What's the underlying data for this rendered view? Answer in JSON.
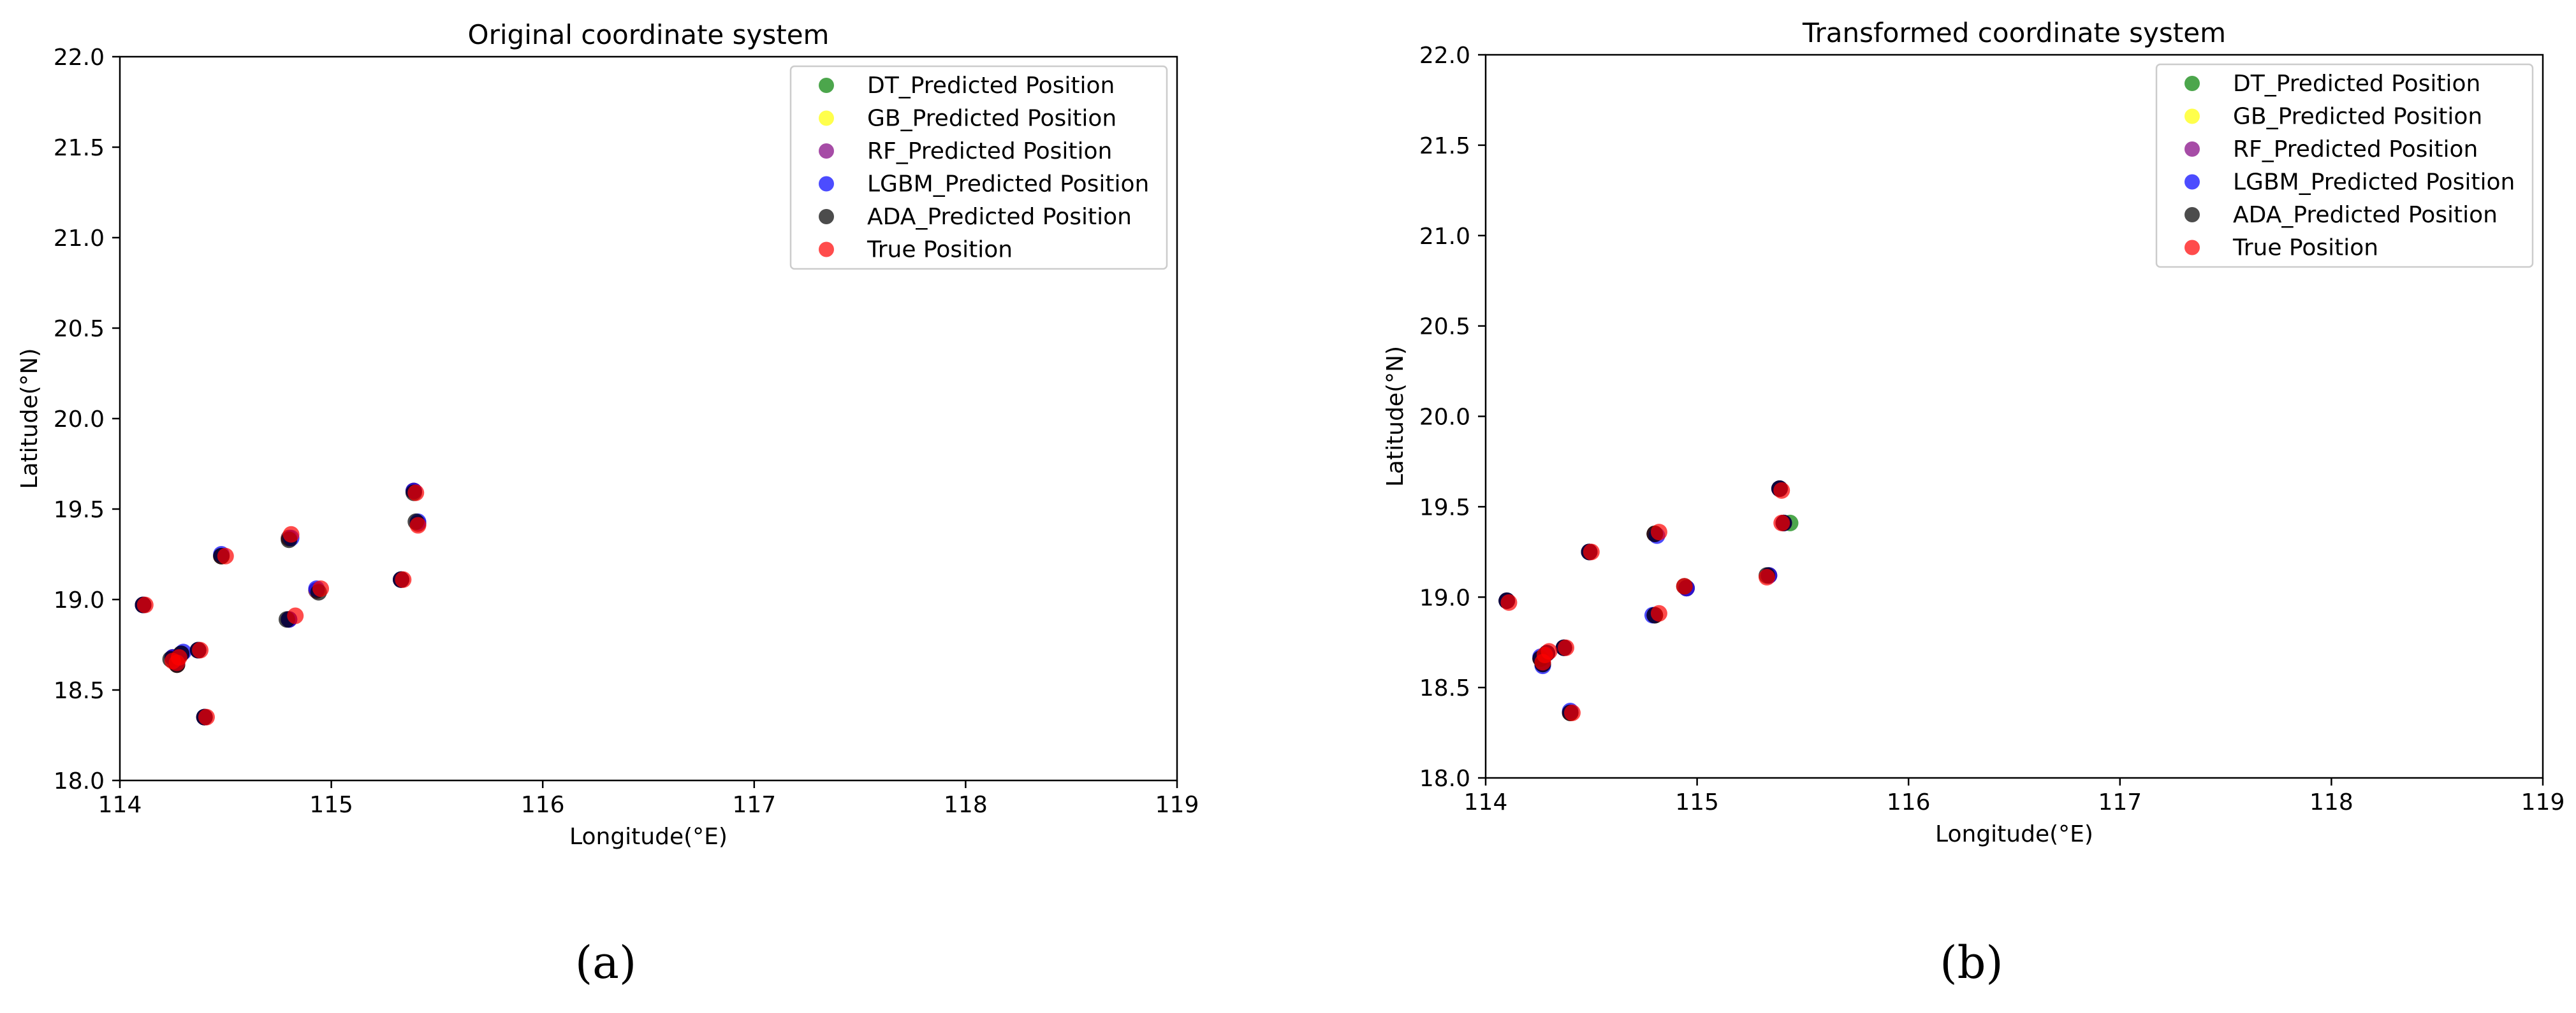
{
  "chart_data": [
    {
      "type": "scatter",
      "title": "Original coordinate system",
      "xlabel": "Longitude(°E)",
      "ylabel": "Latitude(°N)",
      "xlim": [
        114,
        119
      ],
      "ylim": [
        18.0,
        22.0
      ],
      "xticks": [
        "114",
        "115",
        "116",
        "117",
        "118",
        "119"
      ],
      "yticks": [
        "18.0",
        "18.5",
        "19.0",
        "19.5",
        "20.0",
        "20.5",
        "21.0",
        "21.5",
        "22.0"
      ],
      "grid": false,
      "legend_position": "top-right",
      "caption": "(a)",
      "series": [
        {
          "name": "DT_Predicted Position",
          "color": "#008000",
          "points": [
            [
              114.11,
              18.97
            ],
            [
              114.25,
              18.68
            ],
            [
              114.29,
              18.7
            ],
            [
              114.37,
              18.72
            ],
            [
              114.4,
              18.35
            ],
            [
              114.48,
              19.24
            ],
            [
              114.8,
              19.34
            ],
            [
              114.8,
              18.89
            ],
            [
              114.93,
              19.05
            ],
            [
              115.33,
              19.11
            ],
            [
              115.39,
              19.6
            ],
            [
              115.41,
              19.42
            ],
            [
              114.27,
              18.64
            ]
          ]
        },
        {
          "name": "GB_Predicted Position",
          "color": "#ffff00",
          "points": [
            [
              114.11,
              18.97
            ],
            [
              114.25,
              18.68
            ],
            [
              114.29,
              18.7
            ],
            [
              114.37,
              18.72
            ],
            [
              114.4,
              18.35
            ],
            [
              114.48,
              19.24
            ],
            [
              114.8,
              19.34
            ],
            [
              114.8,
              18.89
            ],
            [
              114.93,
              19.05
            ],
            [
              115.33,
              19.11
            ],
            [
              115.39,
              19.6
            ],
            [
              115.41,
              19.42
            ],
            [
              114.27,
              18.64
            ]
          ]
        },
        {
          "name": "RF_Predicted Position",
          "color": "#800080",
          "points": [
            [
              114.11,
              18.97
            ],
            [
              114.25,
              18.68
            ],
            [
              114.29,
              18.7
            ],
            [
              114.37,
              18.72
            ],
            [
              114.4,
              18.35
            ],
            [
              114.48,
              19.24
            ],
            [
              114.8,
              19.34
            ],
            [
              114.8,
              18.89
            ],
            [
              114.93,
              19.05
            ],
            [
              115.33,
              19.11
            ],
            [
              115.39,
              19.6
            ],
            [
              115.41,
              19.42
            ],
            [
              114.27,
              18.64
            ]
          ]
        },
        {
          "name": "LGBM_Predicted Position",
          "color": "#0000ff",
          "points": [
            [
              114.11,
              18.97
            ],
            [
              114.25,
              18.68
            ],
            [
              114.3,
              18.71
            ],
            [
              114.37,
              18.72
            ],
            [
              114.4,
              18.35
            ],
            [
              114.48,
              19.25
            ],
            [
              114.81,
              19.34
            ],
            [
              114.8,
              18.89
            ],
            [
              114.93,
              19.06
            ],
            [
              115.33,
              19.11
            ],
            [
              115.39,
              19.6
            ],
            [
              115.41,
              19.43
            ],
            [
              114.27,
              18.65
            ]
          ]
        },
        {
          "name": "ADA_Predicted Position",
          "color": "#000000",
          "points": [
            [
              114.11,
              18.97
            ],
            [
              114.24,
              18.67
            ],
            [
              114.29,
              18.7
            ],
            [
              114.37,
              18.72
            ],
            [
              114.4,
              18.35
            ],
            [
              114.48,
              19.24
            ],
            [
              114.8,
              19.33
            ],
            [
              114.79,
              18.89
            ],
            [
              114.94,
              19.04
            ],
            [
              115.33,
              19.11
            ],
            [
              115.39,
              19.59
            ],
            [
              115.4,
              19.43
            ],
            [
              114.27,
              18.64
            ]
          ]
        },
        {
          "name": "True Position",
          "color": "#ff0000",
          "points": [
            [
              114.12,
              18.97
            ],
            [
              114.27,
              18.65
            ],
            [
              114.28,
              18.68
            ],
            [
              114.38,
              18.72
            ],
            [
              114.41,
              18.35
            ],
            [
              114.5,
              19.24
            ],
            [
              114.81,
              19.36
            ],
            [
              114.83,
              18.91
            ],
            [
              114.95,
              19.06
            ],
            [
              115.34,
              19.11
            ],
            [
              115.4,
              19.59
            ],
            [
              115.41,
              19.41
            ],
            [
              114.25,
              18.66
            ]
          ]
        }
      ]
    },
    {
      "type": "scatter",
      "title": "Transformed coordinate system",
      "xlabel": "Longitude(°E)",
      "ylabel": "Latitude(°N)",
      "xlim": [
        114,
        119
      ],
      "ylim": [
        18.0,
        22.0
      ],
      "xticks": [
        "114",
        "115",
        "116",
        "117",
        "118",
        "119"
      ],
      "yticks": [
        "18.0",
        "18.5",
        "19.0",
        "19.5",
        "20.0",
        "20.5",
        "21.0",
        "21.5",
        "22.0"
      ],
      "grid": false,
      "legend_position": "top-right",
      "caption": "(b)",
      "series": [
        {
          "name": "DT_Predicted Position",
          "color": "#008000",
          "points": [
            [
              114.1,
              18.98
            ],
            [
              114.26,
              18.66
            ],
            [
              114.29,
              18.69
            ],
            [
              114.37,
              18.72
            ],
            [
              114.4,
              18.36
            ],
            [
              114.49,
              19.25
            ],
            [
              114.8,
              19.35
            ],
            [
              114.8,
              18.9
            ],
            [
              114.95,
              19.05
            ],
            [
              115.34,
              19.12
            ],
            [
              115.39,
              19.6
            ],
            [
              115.44,
              19.41
            ],
            [
              114.27,
              18.63
            ]
          ]
        },
        {
          "name": "GB_Predicted Position",
          "color": "#ffff00",
          "points": [
            [
              114.1,
              18.98
            ],
            [
              114.26,
              18.66
            ],
            [
              114.29,
              18.69
            ],
            [
              114.37,
              18.72
            ],
            [
              114.4,
              18.36
            ],
            [
              114.49,
              19.25
            ],
            [
              114.8,
              19.35
            ],
            [
              114.8,
              18.9
            ],
            [
              114.95,
              19.05
            ],
            [
              115.34,
              19.12
            ],
            [
              115.39,
              19.6
            ],
            [
              115.41,
              19.41
            ],
            [
              114.27,
              18.63
            ]
          ]
        },
        {
          "name": "RF_Predicted Position",
          "color": "#800080",
          "points": [
            [
              114.1,
              18.98
            ],
            [
              114.26,
              18.66
            ],
            [
              114.29,
              18.69
            ],
            [
              114.37,
              18.72
            ],
            [
              114.4,
              18.36
            ],
            [
              114.49,
              19.25
            ],
            [
              114.8,
              19.35
            ],
            [
              114.8,
              18.9
            ],
            [
              114.95,
              19.05
            ],
            [
              115.34,
              19.12
            ],
            [
              115.39,
              19.6
            ],
            [
              115.41,
              19.41
            ],
            [
              114.27,
              18.63
            ]
          ]
        },
        {
          "name": "LGBM_Predicted Position",
          "color": "#0000ff",
          "points": [
            [
              114.1,
              18.98
            ],
            [
              114.26,
              18.67
            ],
            [
              114.29,
              18.69
            ],
            [
              114.37,
              18.72
            ],
            [
              114.4,
              18.37
            ],
            [
              114.49,
              19.25
            ],
            [
              114.81,
              19.34
            ],
            [
              114.79,
              18.9
            ],
            [
              114.95,
              19.05
            ],
            [
              115.34,
              19.12
            ],
            [
              115.39,
              19.6
            ],
            [
              115.41,
              19.41
            ],
            [
              114.27,
              18.62
            ]
          ]
        },
        {
          "name": "ADA_Predicted Position",
          "color": "#000000",
          "points": [
            [
              114.1,
              18.98
            ],
            [
              114.26,
              18.66
            ],
            [
              114.29,
              18.69
            ],
            [
              114.37,
              18.72
            ],
            [
              114.4,
              18.36
            ],
            [
              114.49,
              19.25
            ],
            [
              114.8,
              19.35
            ],
            [
              114.8,
              18.9
            ],
            [
              114.94,
              19.06
            ],
            [
              115.33,
              19.12
            ],
            [
              115.39,
              19.6
            ],
            [
              115.41,
              19.41
            ],
            [
              114.27,
              18.63
            ]
          ]
        },
        {
          "name": "True Position",
          "color": "#ff0000",
          "points": [
            [
              114.11,
              18.97
            ],
            [
              114.28,
              18.68
            ],
            [
              114.3,
              18.7
            ],
            [
              114.38,
              18.72
            ],
            [
              114.41,
              18.36
            ],
            [
              114.5,
              19.25
            ],
            [
              114.82,
              19.36
            ],
            [
              114.82,
              18.91
            ],
            [
              114.94,
              19.06
            ],
            [
              115.33,
              19.11
            ],
            [
              115.4,
              19.59
            ],
            [
              115.4,
              19.41
            ],
            [
              114.27,
              18.64
            ]
          ]
        }
      ]
    }
  ]
}
